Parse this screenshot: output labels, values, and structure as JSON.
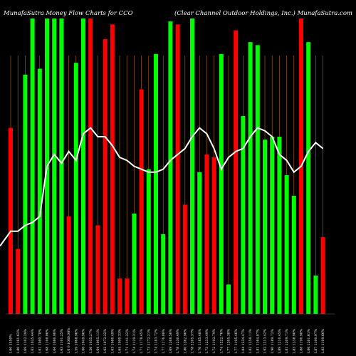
{
  "header": {
    "left": "MunafaSutra Money Flow Charts for CCO",
    "right": "(Clear Channel Outdoor Holdings, Inc.) MunafaSutra.com"
  },
  "chart_data": {
    "type": "bar",
    "title": "MunafaSutra Money Flow Charts for CCO",
    "subtitle": "(Clear Channel Outdoor Holdings, Inc.) MunafaSutra.com",
    "bar_colors": {
      "up": "#00ff00",
      "down": "#ff0000"
    },
    "line_color": "#ffffff",
    "grid_color": "#b36b00",
    "ylim": [
      0,
      100
    ],
    "categories": [
      "1.60 1550% ",
      "1.80 1161.62% ",
      "1.69 1102.29% ",
      "1.63 1035.44% ",
      "1.61 1080.78% ",
      "1.68 1108.06% ",
      "1.64 1080.90% ",
      "1.63 1101.25% ",
      "1.6 0 1080.08% ",
      "1.59 1068.96% ",
      "1.60 1049.96% ",
      "1.56 1035.27% ",
      "1.64 1005.11% ",
      "1.62 1072.22% ",
      "1.63 1080.49% ",
      "1.64 1090.33% ",
      "1.71 1141.22% ",
      "1.74 1129.31% ",
      "1.71 1178.45% ",
      "1.73 1172.21% ",
      "1.74 1183.72% ",
      "1.77 1176.08% ",
      "1.69 1268.50% ",
      "1.78 1230.49% ",
      "1.80 1262.90% ",
      "1.78 1205.37% ",
      "1.76 1185.48% ",
      "1.73 1233.49% ",
      "1.72 1192.79% ",
      "1.74 1222.76% ",
      "1.77 1205.38% ",
      "1.77 1195.46% ",
      "1.84 1234.47% ",
      "1.82 1258.11% ",
      "1.81 1164.07% ",
      "1.92 1213.42% ",
      "1.90 1189.72% ",
      "1.89 1210.45% ",
      "1.81 1209.71% ",
      "1.83 1238.90% ",
      "1.88 1190.98% ",
      "1.86 1201.61% ",
      "1.87 1100.97% ",
      "1.83 1109.66% "
    ],
    "bar_direction": [
      "down",
      "down",
      "up",
      "up",
      "up",
      "up",
      "up",
      "up",
      "down",
      "up",
      "up",
      "down",
      "down",
      "down",
      "down",
      "down",
      "down",
      "up",
      "down",
      "up",
      "up",
      "up",
      "up",
      "down",
      "down",
      "up",
      "up",
      "down",
      "down",
      "up",
      "up",
      "down",
      "up",
      "up",
      "up",
      "up",
      "up",
      "up",
      "up",
      "up",
      "down",
      "up",
      "up",
      "down"
    ],
    "bar_height": [
      63,
      22,
      81,
      112,
      83,
      112,
      112,
      112,
      33,
      85,
      112,
      112,
      30,
      93,
      98,
      12,
      12,
      34,
      76,
      49,
      88,
      27,
      99,
      98,
      37,
      106,
      48,
      54,
      53,
      88,
      10,
      96,
      67,
      92,
      91,
      59,
      60,
      60,
      47,
      40,
      100,
      92,
      13,
      26
    ],
    "money_flow_line": [
      28,
      28,
      30,
      31,
      33,
      50,
      54,
      51,
      55,
      52,
      61,
      63,
      60,
      60,
      57,
      53,
      52,
      50,
      49,
      48,
      48,
      49,
      52,
      54,
      56,
      60,
      63,
      61,
      56,
      49,
      53,
      55,
      56,
      60,
      63,
      62,
      60,
      54,
      52,
      48,
      50,
      55,
      58,
      56
    ]
  }
}
